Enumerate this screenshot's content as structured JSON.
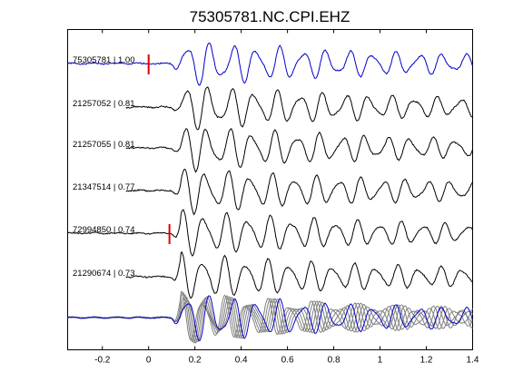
{
  "chart_data": {
    "type": "line",
    "title": "75305781.NC.CPI.EHZ",
    "xlabel": "",
    "ylabel": "",
    "xlim": [
      -0.35,
      1.4
    ],
    "xticks": [
      -0.2,
      0,
      0.2,
      0.4,
      0.6,
      0.8,
      1,
      1.2,
      1.4
    ],
    "xtick_labels": [
      "-0.2",
      "0",
      "0.2",
      "0.4",
      "0.6",
      "0.8",
      "1",
      "1.2",
      "1.4"
    ],
    "grid": false,
    "legend": "none",
    "colors": {
      "master": "#0000cc",
      "trace": "#000000",
      "stack": "#808080",
      "pick": "#dd0000"
    },
    "series": [
      {
        "label": "75305781 | 1.00",
        "pick_time": 0.0,
        "color": "#0000cc",
        "envelope": [
          0.02,
          0.02,
          0.02,
          0.03,
          0.03,
          0.05,
          0.6,
          0.9,
          1.0,
          0.75,
          0.7,
          0.85,
          0.55,
          0.45,
          0.45,
          0.4,
          0.35,
          0.3
        ],
        "periods": [
          0.1,
          0.1,
          0.1,
          0.1,
          0.1,
          0.1,
          0.085,
          0.09,
          0.095,
          0.095,
          0.1,
          0.1,
          0.1,
          0.1,
          0.1,
          0.1,
          0.1,
          0.1
        ]
      },
      {
        "label": "21257052 | 0.81",
        "color": "#000000"
      },
      {
        "label": "21257055 | 0.81",
        "color": "#000000"
      },
      {
        "label": "21347514 | 0.77",
        "color": "#000000"
      },
      {
        "label": "72994850 | 0.74",
        "pick_time": 0.09,
        "color": "#000000"
      },
      {
        "label": "21290674 | 0.73",
        "color": "#000000"
      },
      {
        "label": "",
        "color": "#808080"
      }
    ]
  }
}
